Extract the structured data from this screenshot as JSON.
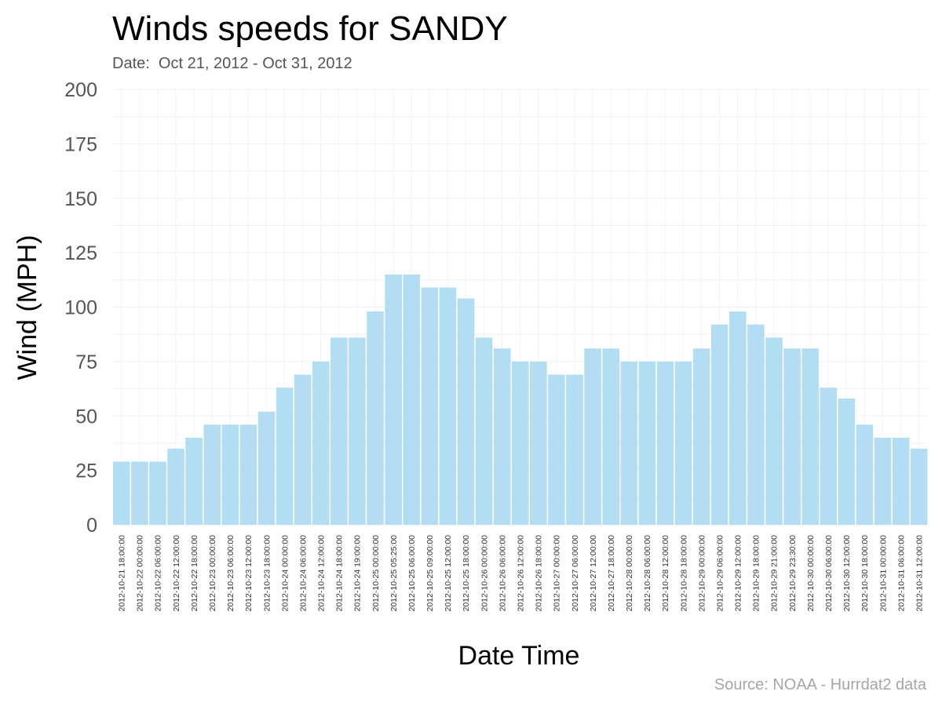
{
  "chart_data": {
    "type": "bar",
    "title": "Winds speeds for SANDY",
    "subtitle": "Date:  Oct 21, 2012 - Oct 31, 2012",
    "caption": "Source: NOAA - Hurrdat2 data",
    "xlabel": "Date Time",
    "ylabel": "Wind (MPH)",
    "ylim": [
      0,
      200
    ],
    "yticks": [
      0,
      25,
      50,
      75,
      100,
      125,
      150,
      175,
      200
    ],
    "grid": true,
    "bar_color": "#b3ddf2",
    "categories": [
      "2012-10-21 18:00:00",
      "2012-10-22 00:00:00",
      "2012-10-22 06:00:00",
      "2012-10-22 12:00:00",
      "2012-10-22 18:00:00",
      "2012-10-23 00:00:00",
      "2012-10-23 06:00:00",
      "2012-10-23 12:00:00",
      "2012-10-23 18:00:00",
      "2012-10-24 00:00:00",
      "2012-10-24 06:00:00",
      "2012-10-24 12:00:00",
      "2012-10-24 18:00:00",
      "2012-10-24 19:00:00",
      "2012-10-25 00:00:00",
      "2012-10-25 05:25:00",
      "2012-10-25 06:00:00",
      "2012-10-25 09:00:00",
      "2012-10-25 12:00:00",
      "2012-10-25 18:00:00",
      "2012-10-26 00:00:00",
      "2012-10-26 06:00:00",
      "2012-10-26 12:00:00",
      "2012-10-26 18:00:00",
      "2012-10-27 00:00:00",
      "2012-10-27 06:00:00",
      "2012-10-27 12:00:00",
      "2012-10-27 18:00:00",
      "2012-10-28 00:00:00",
      "2012-10-28 06:00:00",
      "2012-10-28 12:00:00",
      "2012-10-28 18:00:00",
      "2012-10-29 00:00:00",
      "2012-10-29 06:00:00",
      "2012-10-29 12:00:00",
      "2012-10-29 18:00:00",
      "2012-10-29 21:00:00",
      "2012-10-29 23:30:00",
      "2012-10-30 00:00:00",
      "2012-10-30 06:00:00",
      "2012-10-30 12:00:00",
      "2012-10-30 18:00:00",
      "2012-10-31 00:00:00",
      "2012-10-31 06:00:00",
      "2012-10-31 12:00:00"
    ],
    "values": [
      29,
      29,
      29,
      35,
      40,
      46,
      46,
      46,
      52,
      63,
      69,
      75,
      86,
      86,
      98,
      115,
      115,
      109,
      109,
      104,
      86,
      81,
      75,
      75,
      69,
      69,
      81,
      81,
      75,
      75,
      75,
      75,
      81,
      92,
      98,
      92,
      86,
      81,
      81,
      63,
      58,
      46,
      40,
      40,
      35
    ]
  }
}
